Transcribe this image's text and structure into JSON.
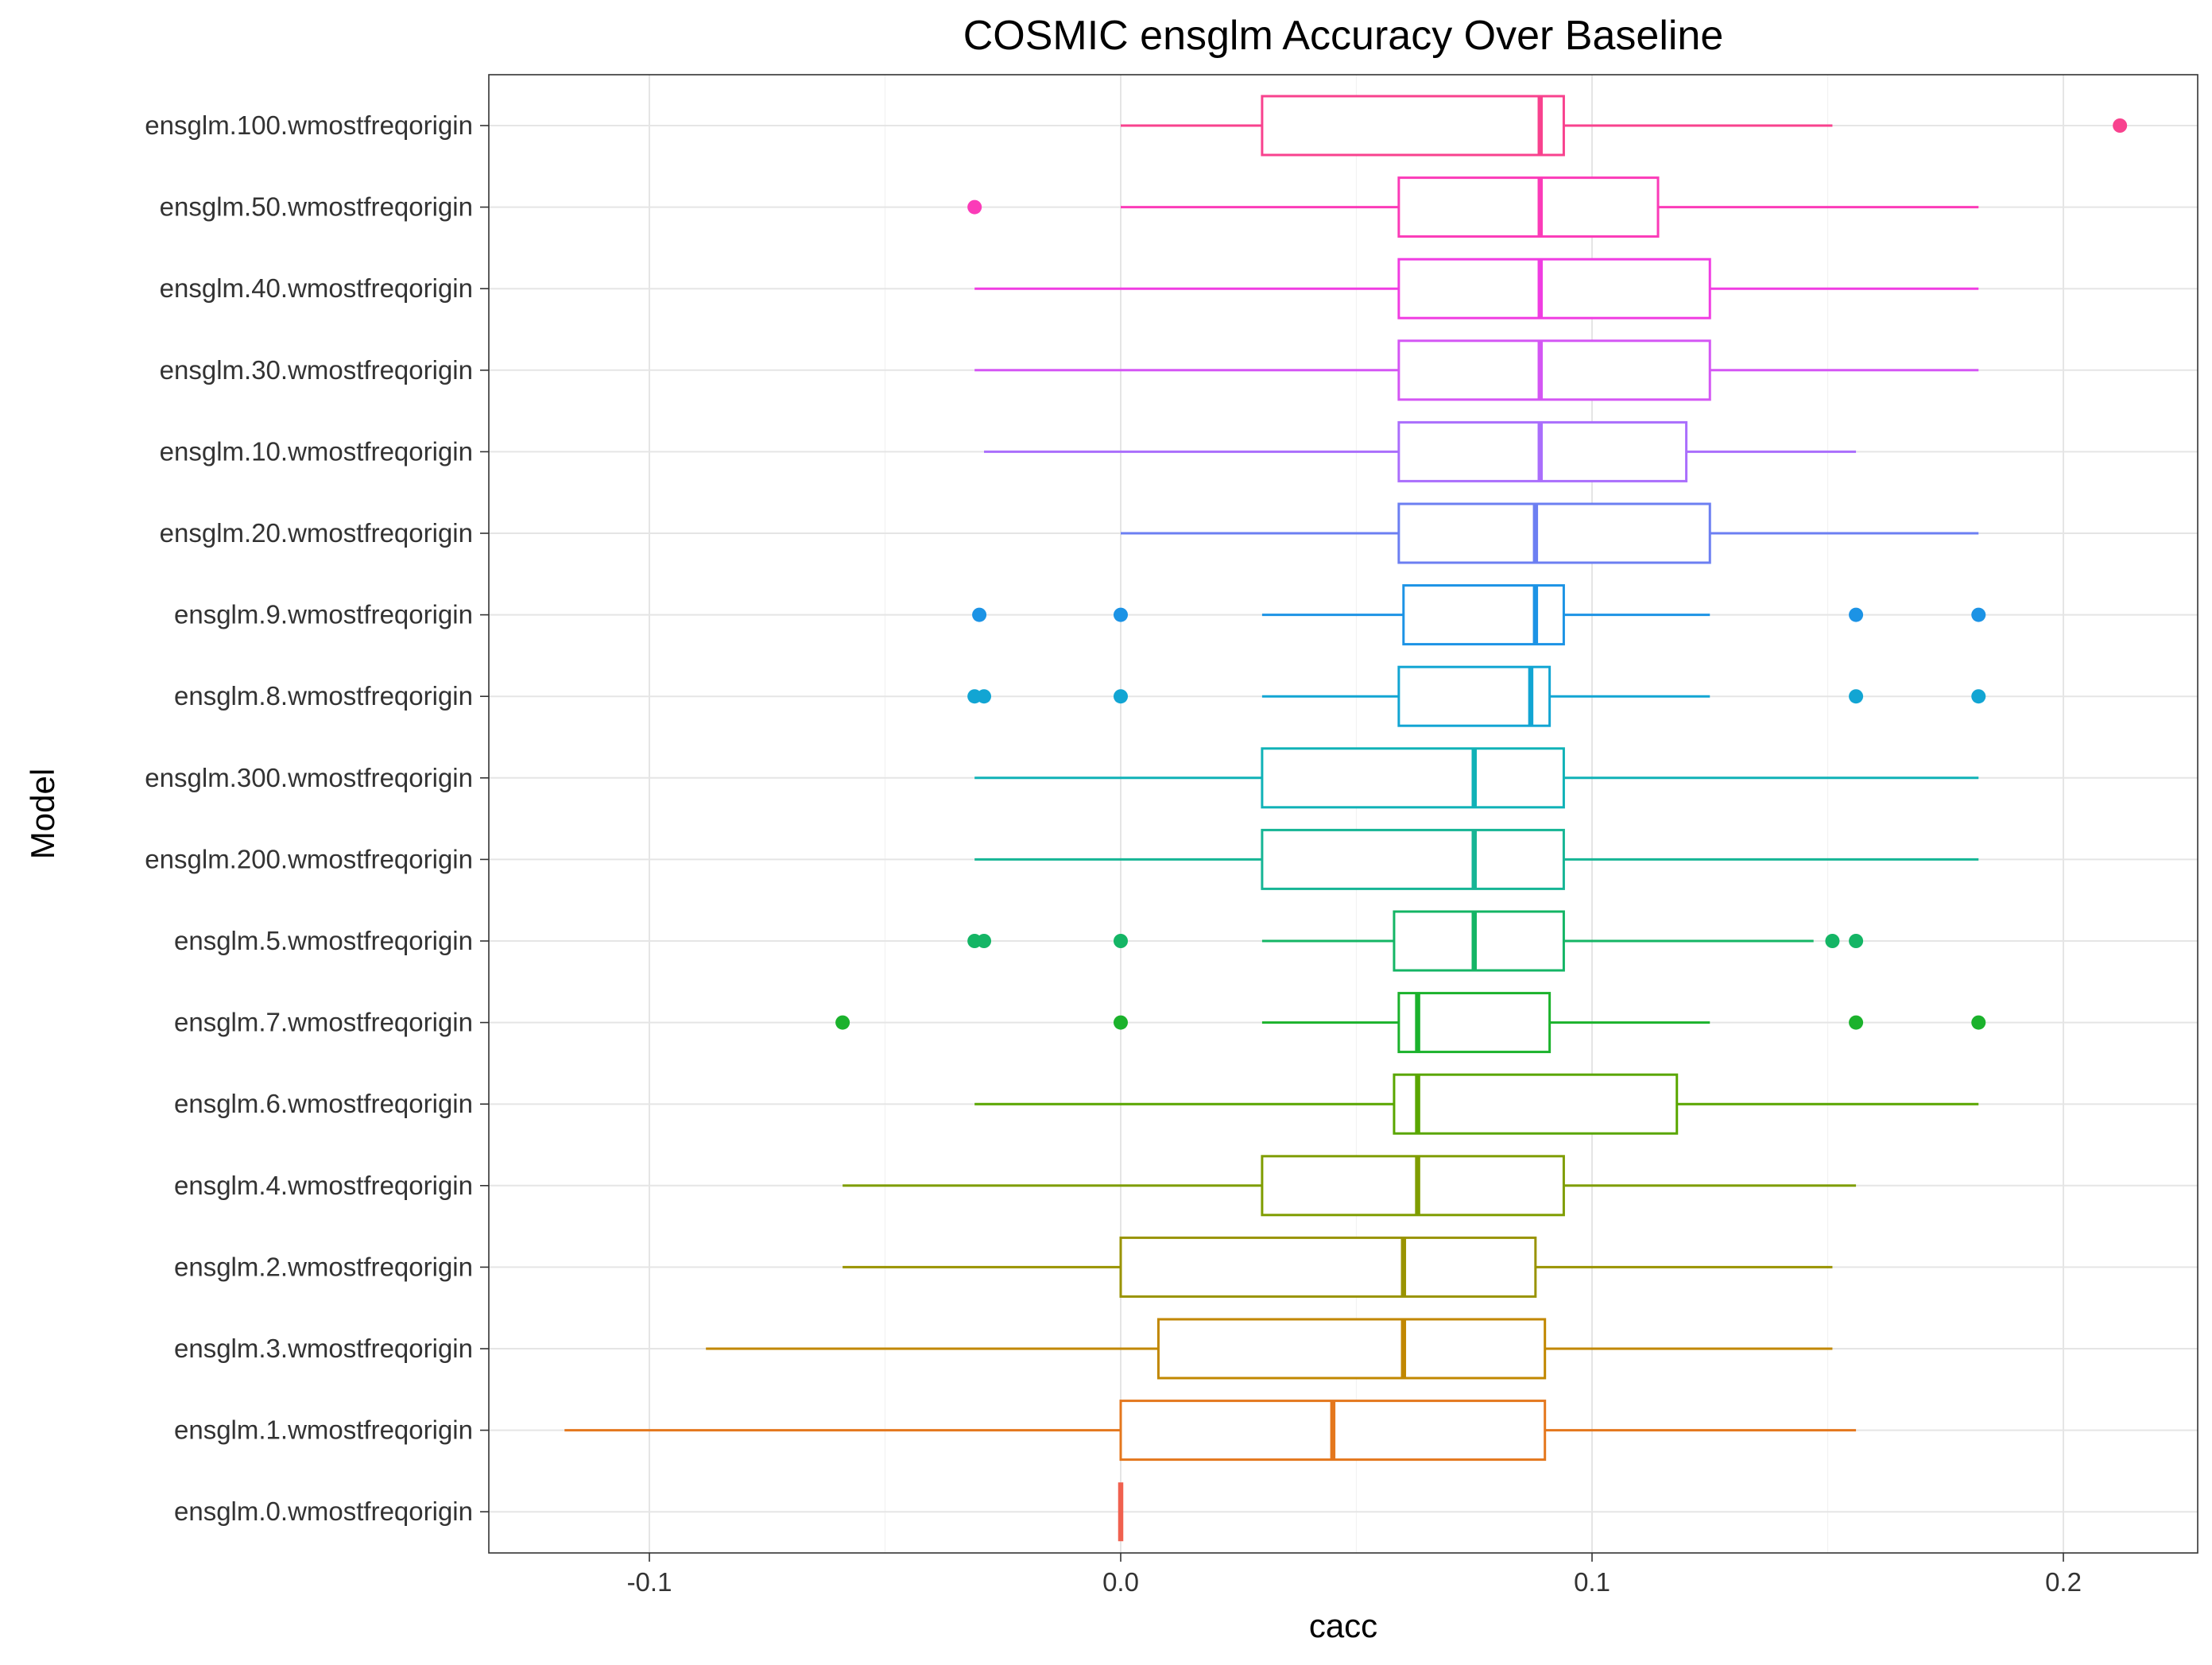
{
  "chart_data": {
    "type": "boxplot",
    "title": "COSMIC ensglm Accuracy Over Baseline",
    "xlabel": "cacc",
    "ylabel": "Model",
    "xlim": [
      -0.1,
      0.2
    ],
    "x_ticks": [
      "-0.1",
      "0.0",
      "0.1",
      "0.2"
    ],
    "x_tick_values": [
      -0.1,
      0.0,
      0.1,
      0.2
    ],
    "grid": true,
    "legend": "none",
    "series": [
      {
        "name": "ensglm.100.wmostfreqorigin",
        "color": "#F8428E",
        "whisker_low": 0.0,
        "q1": 0.03,
        "median": 0.089,
        "q3": 0.094,
        "whisker_high": 0.151,
        "outliers": [
          0.212
        ]
      },
      {
        "name": "ensglm.50.wmostfreqorigin",
        "color": "#FB3BB8",
        "whisker_low": 0.0,
        "q1": 0.059,
        "median": 0.089,
        "q3": 0.114,
        "whisker_high": 0.182,
        "outliers": [
          -0.031
        ]
      },
      {
        "name": "ensglm.40.wmostfreqorigin",
        "color": "#F03DE2",
        "whisker_low": -0.031,
        "q1": 0.059,
        "median": 0.089,
        "q3": 0.125,
        "whisker_high": 0.182,
        "outliers": []
      },
      {
        "name": "ensglm.30.wmostfreqorigin",
        "color": "#D456F4",
        "whisker_low": -0.031,
        "q1": 0.059,
        "median": 0.089,
        "q3": 0.125,
        "whisker_high": 0.182,
        "outliers": []
      },
      {
        "name": "ensglm.10.wmostfreqorigin",
        "color": "#AA6EFC",
        "whisker_low": -0.029,
        "q1": 0.059,
        "median": 0.089,
        "q3": 0.12,
        "whisker_high": 0.156,
        "outliers": []
      },
      {
        "name": "ensglm.20.wmostfreqorigin",
        "color": "#6C7FF2",
        "whisker_low": 0.0,
        "q1": 0.059,
        "median": 0.088,
        "q3": 0.125,
        "whisker_high": 0.182,
        "outliers": []
      },
      {
        "name": "ensglm.9.wmostfreqorigin",
        "color": "#1C93E5",
        "whisker_low": 0.03,
        "q1": 0.06,
        "median": 0.088,
        "q3": 0.094,
        "whisker_high": 0.125,
        "outliers": [
          -0.03,
          0.0,
          0.156,
          0.182
        ]
      },
      {
        "name": "ensglm.8.wmostfreqorigin",
        "color": "#12A5D3",
        "whisker_low": 0.03,
        "q1": 0.059,
        "median": 0.087,
        "q3": 0.091,
        "whisker_high": 0.125,
        "outliers": [
          -0.031,
          -0.029,
          0.0,
          0.156,
          0.182
        ]
      },
      {
        "name": "ensglm.300.wmostfreqorigin",
        "color": "#10B2B7",
        "whisker_low": -0.031,
        "q1": 0.03,
        "median": 0.075,
        "q3": 0.094,
        "whisker_high": 0.182,
        "outliers": []
      },
      {
        "name": "ensglm.200.wmostfreqorigin",
        "color": "#16B595",
        "whisker_low": -0.031,
        "q1": 0.03,
        "median": 0.075,
        "q3": 0.094,
        "whisker_high": 0.182,
        "outliers": []
      },
      {
        "name": "ensglm.5.wmostfreqorigin",
        "color": "#14B565",
        "whisker_low": 0.03,
        "q1": 0.058,
        "median": 0.075,
        "q3": 0.094,
        "whisker_high": 0.147,
        "outliers": [
          -0.031,
          -0.029,
          0.0,
          0.151,
          0.156
        ]
      },
      {
        "name": "ensglm.7.wmostfreqorigin",
        "color": "#1BB22C",
        "whisker_low": 0.03,
        "q1": 0.059,
        "median": 0.063,
        "q3": 0.091,
        "whisker_high": 0.125,
        "outliers": [
          -0.059,
          0.0,
          0.156,
          0.182
        ]
      },
      {
        "name": "ensglm.6.wmostfreqorigin",
        "color": "#59A600",
        "whisker_low": -0.031,
        "q1": 0.058,
        "median": 0.063,
        "q3": 0.118,
        "whisker_high": 0.182,
        "outliers": []
      },
      {
        "name": "ensglm.4.wmostfreqorigin",
        "color": "#7F9D00",
        "whisker_low": -0.059,
        "q1": 0.03,
        "median": 0.063,
        "q3": 0.094,
        "whisker_high": 0.156,
        "outliers": []
      },
      {
        "name": "ensglm.2.wmostfreqorigin",
        "color": "#999300",
        "whisker_low": -0.059,
        "q1": 0.0,
        "median": 0.06,
        "q3": 0.088,
        "whisker_high": 0.151,
        "outliers": []
      },
      {
        "name": "ensglm.3.wmostfreqorigin",
        "color": "#C18700",
        "whisker_low": -0.088,
        "q1": 0.008,
        "median": 0.06,
        "q3": 0.09,
        "whisker_high": 0.151,
        "outliers": []
      },
      {
        "name": "ensglm.1.wmostfreqorigin",
        "color": "#E4771D",
        "whisker_low": -0.118,
        "q1": 0.0,
        "median": 0.045,
        "q3": 0.09,
        "whisker_high": 0.156,
        "outliers": []
      },
      {
        "name": "ensglm.0.wmostfreqorigin",
        "color": "#F0614F",
        "whisker_low": 0.0,
        "q1": 0.0,
        "median": 0.0,
        "q3": 0.0,
        "whisker_high": 0.0,
        "outliers": []
      }
    ]
  }
}
